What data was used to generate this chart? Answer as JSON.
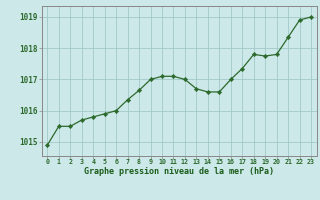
{
  "hours": [
    0,
    1,
    2,
    3,
    4,
    5,
    6,
    7,
    8,
    9,
    10,
    11,
    12,
    13,
    14,
    15,
    16,
    17,
    18,
    19,
    20,
    21,
    22,
    23
  ],
  "pressure": [
    1014.9,
    1015.5,
    1015.5,
    1015.7,
    1015.8,
    1015.9,
    1016.0,
    1016.35,
    1016.65,
    1017.0,
    1017.1,
    1017.1,
    1017.0,
    1016.7,
    1016.6,
    1016.6,
    1017.0,
    1017.35,
    1017.8,
    1017.75,
    1017.8,
    1018.35,
    1018.9,
    1019.0
  ],
  "line_color": "#2d6a2d",
  "marker_color": "#2d6a2d",
  "bg_color": "#cce8e8",
  "grid_color": "#a0c8c8",
  "xlabel": "Graphe pression niveau de la mer (hPa)",
  "xlabel_color": "#1a5c1a",
  "yticks": [
    1015,
    1016,
    1017,
    1018,
    1019
  ],
  "ylim": [
    1014.55,
    1019.35
  ],
  "xlim": [
    -0.5,
    23.5
  ],
  "tick_label_color": "#2d6a2d",
  "spine_color": "#888888",
  "xlabel_fontsize": 6.0,
  "ytick_fontsize": 5.5,
  "xtick_fontsize": 4.8,
  "linewidth": 0.9,
  "markersize": 2.2
}
